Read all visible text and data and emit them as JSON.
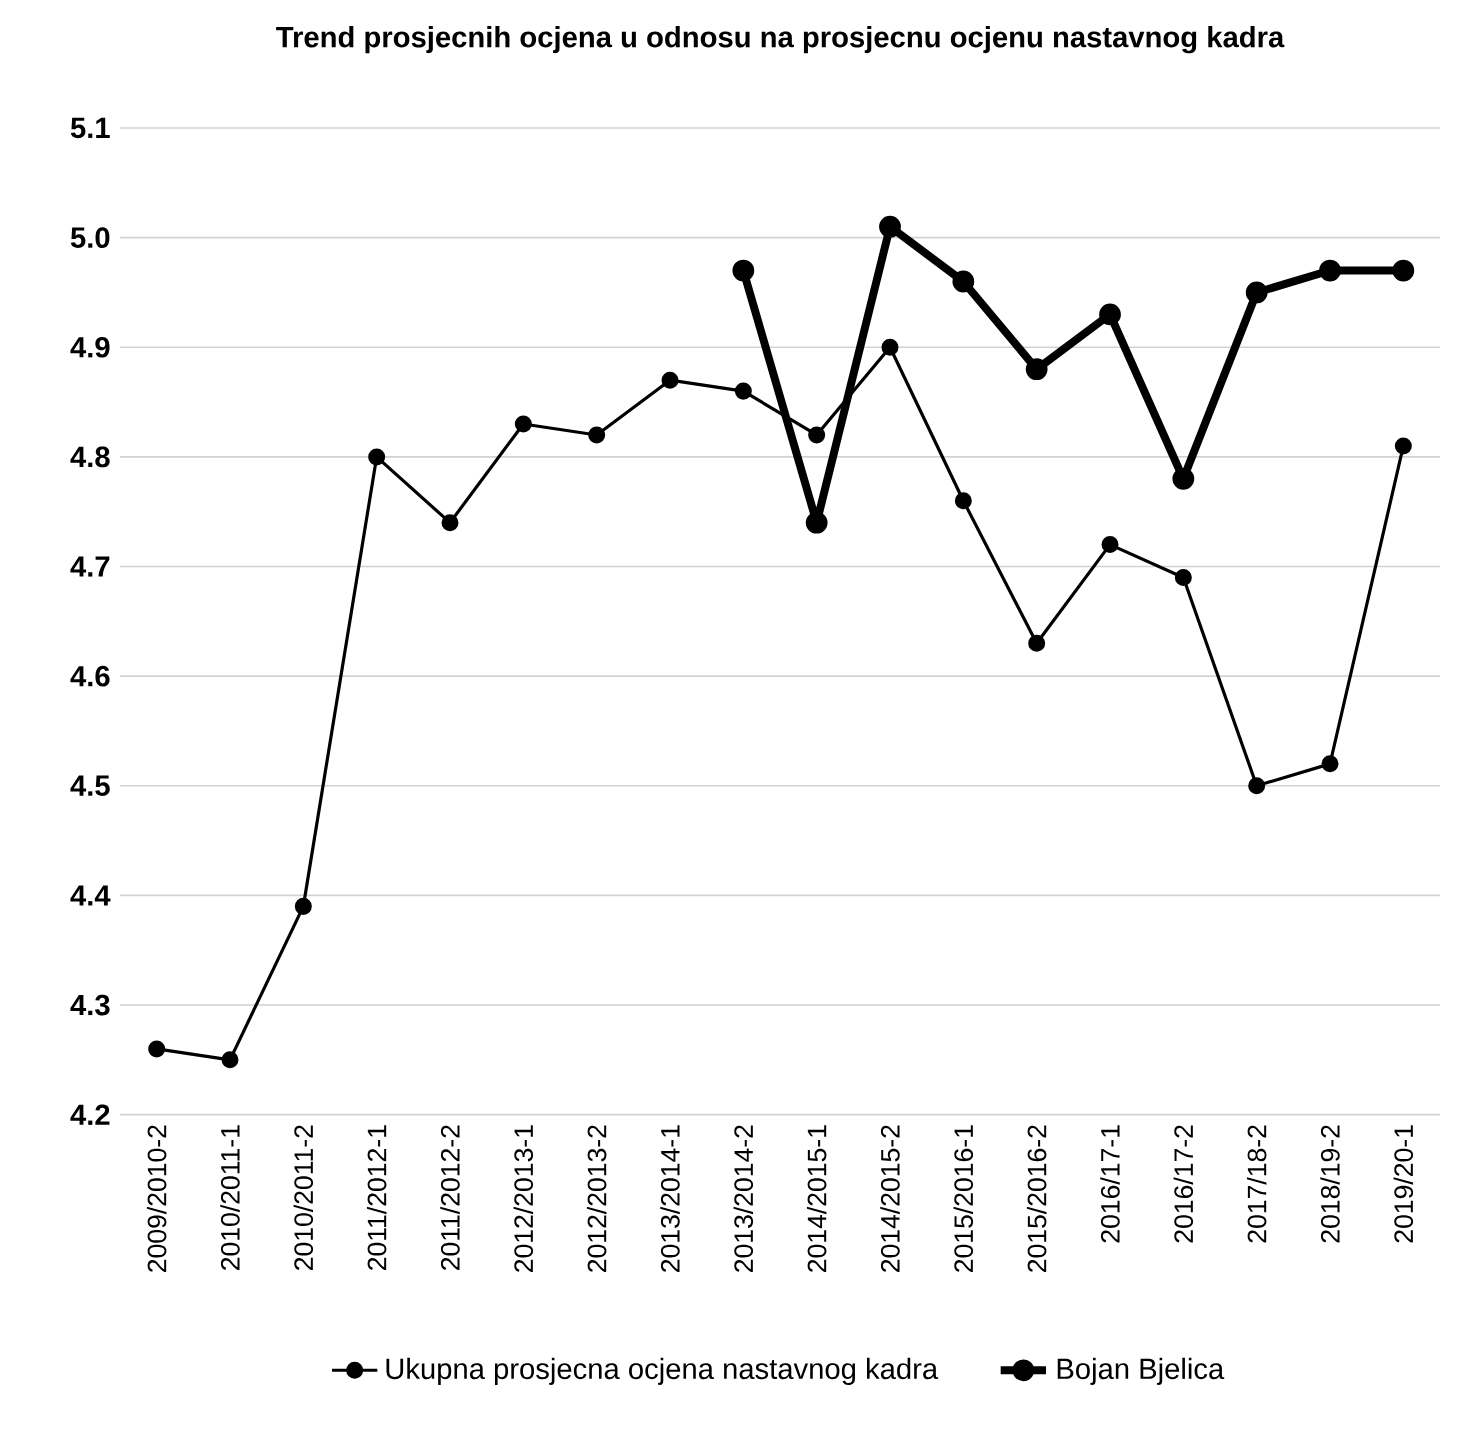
{
  "chart_data": {
    "type": "line",
    "title": "Trend prosjecnih ocjena u odnosu na prosjecnu ocjenu nastavnog kadra",
    "categories": [
      "2009/2010-2",
      "2010/2011-1",
      "2010/2011-2",
      "2011/2012-1",
      "2011/2012-2",
      "2012/2013-1",
      "2012/2013-2",
      "2013/2014-1",
      "2013/2014-2",
      "2014/2015-1",
      "2014/2015-2",
      "2015/2016-1",
      "2015/2016-2",
      "2016/17-1",
      "2016/17-2",
      "2017/18-2",
      "2018/19-2",
      "2019/20-1"
    ],
    "series": [
      {
        "name": "Ukupna prosjecna ocjena nastavnog kadra",
        "color": "#000000",
        "values": [
          4.26,
          4.25,
          4.39,
          4.8,
          4.74,
          4.83,
          4.82,
          4.87,
          4.86,
          4.82,
          4.9,
          4.76,
          4.63,
          4.72,
          4.69,
          4.5,
          4.52,
          4.81
        ]
      },
      {
        "name": "Bojan Bjelica",
        "color": "#000000",
        "values": [
          null,
          null,
          null,
          null,
          null,
          null,
          null,
          null,
          4.97,
          4.74,
          5.01,
          4.96,
          4.88,
          4.93,
          4.78,
          4.95,
          4.97,
          4.97
        ]
      }
    ],
    "ylim": [
      4.2,
      5.1
    ],
    "yticks": [
      {
        "value": 4.2,
        "label": "4.2"
      },
      {
        "value": 4.3,
        "label": "4.3"
      },
      {
        "value": 4.4,
        "label": "4.4"
      },
      {
        "value": 4.5,
        "label": "4.5"
      },
      {
        "value": 4.6,
        "label": "4.6"
      },
      {
        "value": 4.7,
        "label": "4.7"
      },
      {
        "value": 4.8,
        "label": "4.8"
      },
      {
        "value": 4.9,
        "label": "4.9"
      },
      {
        "value": 5.0,
        "label": "5.0"
      },
      {
        "value": 5.1,
        "label": "5.1"
      }
    ],
    "grid": "y",
    "legend": "bottom",
    "marker": "circle",
    "line_style": "solid"
  }
}
